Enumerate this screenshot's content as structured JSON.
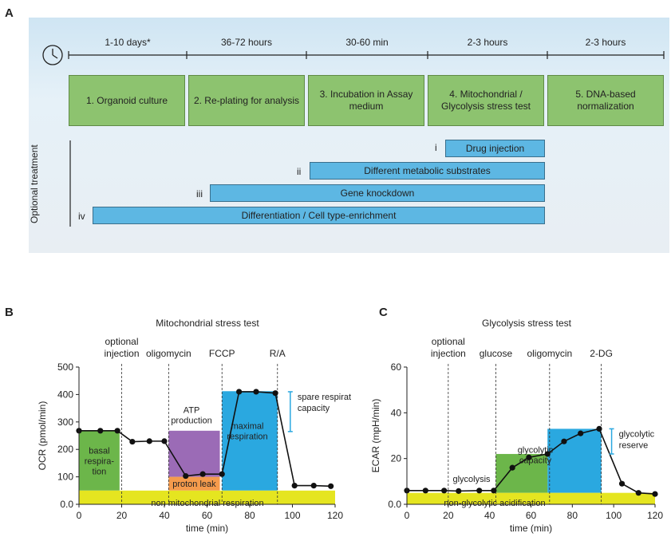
{
  "panel_letters": {
    "a": "A",
    "b": "B",
    "c": "C"
  },
  "timeline": {
    "icon": "clock-icon",
    "phases": [
      "1-10 days*",
      "36-72 hours",
      "30-60 min",
      "2-3 hours",
      "2-3 hours"
    ],
    "steps": [
      "1. Organoid culture",
      "2. Re-plating for analysis",
      "3. Incubation in Assay medium",
      "4. Mitochondrial / Glycolysis stress test",
      "5. DNA-based normalization"
    ]
  },
  "optional_treatment": {
    "label": "Optional treatment",
    "items": [
      {
        "roman": "i",
        "label": "Drug injection"
      },
      {
        "roman": "ii",
        "label": "Different metabolic substrates"
      },
      {
        "roman": "iii",
        "label": "Gene knockdown"
      },
      {
        "roman": "iv",
        "label": "Differentiation / Cell type-enrichment"
      }
    ]
  },
  "colors": {
    "step_green": "#8dc36f",
    "bar_blue": "#5db7e3",
    "basal_green": "#6cb64a",
    "atp_purple": "#9b6bb6",
    "proton_orange": "#f59b4c",
    "maximal_blue": "#2aa8e0",
    "yellow": "#e5e520",
    "reserve_blue": "#2aa8e0"
  },
  "chart_data": [
    {
      "type": "line",
      "title": "Mitochondrial stress test",
      "xlabel": "time (min)",
      "ylabel": "OCR (pmol/min)",
      "xlim": [
        0,
        120
      ],
      "ylim": [
        0,
        500
      ],
      "xticks": [
        "0",
        "20",
        "40",
        "60",
        "80",
        "100",
        "120"
      ],
      "yticks": [
        "0.0",
        "100",
        "200",
        "300",
        "400",
        "500"
      ],
      "injections": [
        {
          "x": 20,
          "label": "optional injection",
          "label_lines": [
            "optional",
            "injection"
          ]
        },
        {
          "x": 42,
          "label": "oligomycin",
          "label_lines": [
            "oligomycin"
          ]
        },
        {
          "x": 67,
          "label": "FCCP",
          "label_lines": [
            "FCCP"
          ]
        },
        {
          "x": 93,
          "label": "R/A",
          "label_lines": [
            "R/A"
          ]
        }
      ],
      "series": [
        {
          "x": [
            0,
            10,
            18,
            25,
            33,
            40,
            50,
            58,
            67,
            75,
            83,
            92,
            101,
            110,
            118
          ],
          "y": [
            268,
            268,
            268,
            228,
            230,
            230,
            103,
            110,
            110,
            410,
            410,
            405,
            68,
            68,
            66
          ]
        }
      ],
      "regions": [
        {
          "label": "basal respira-tion",
          "label_lines": [
            "basal",
            "respira-",
            "tion"
          ],
          "x": [
            0,
            19
          ],
          "y": [
            50,
            268
          ],
          "color": "#6cb64a"
        },
        {
          "label": "ATP production",
          "label_lines": [
            "ATP",
            "production"
          ],
          "x": [
            42,
            66
          ],
          "y": [
            100,
            268
          ],
          "color": "#9b6bb6"
        },
        {
          "label": "proton leak",
          "label_lines": [
            "proton leak"
          ],
          "x": [
            42,
            66
          ],
          "y": [
            50,
            100
          ],
          "color": "#f59b4c"
        },
        {
          "label": "maximal respiration",
          "label_lines": [
            "maximal",
            "respiration"
          ],
          "x": [
            67,
            93
          ],
          "y": [
            50,
            412
          ],
          "color": "#2aa8e0"
        },
        {
          "label": "non mitochondrial respiration",
          "label_lines": [
            "non mitochondrial respiration"
          ],
          "x": [
            0,
            120
          ],
          "y": [
            0,
            50
          ],
          "color": "#e5e520"
        }
      ],
      "reserve": {
        "label": "spare respiratory capacity",
        "label_lines": [
          "spare respiratory",
          "capacity"
        ],
        "x": 99,
        "y": [
          265,
          410
        ]
      }
    },
    {
      "type": "line",
      "title": "Glycolysis stress test",
      "xlabel": "time (min)",
      "ylabel": "ECAR (mpH/min)",
      "xlim": [
        0,
        120
      ],
      "ylim": [
        0,
        60
      ],
      "xticks": [
        "0",
        "20",
        "40",
        "60",
        "80",
        "100",
        "120"
      ],
      "yticks": [
        "0.0",
        "20",
        "40",
        "60"
      ],
      "injections": [
        {
          "x": 20,
          "label": "optional injection",
          "label_lines": [
            "optional",
            "injection"
          ]
        },
        {
          "x": 43,
          "label": "glucose",
          "label_lines": [
            "glucose"
          ]
        },
        {
          "x": 69,
          "label": "oligomycin",
          "label_lines": [
            "oligomycin"
          ]
        },
        {
          "x": 94,
          "label": "2-DG",
          "label_lines": [
            "2-DG"
          ]
        }
      ],
      "series": [
        {
          "x": [
            0,
            9,
            18,
            25,
            35,
            42,
            51,
            59,
            68,
            76,
            84,
            93,
            104,
            112,
            120
          ],
          "y": [
            6,
            6,
            6,
            5.8,
            6,
            6,
            16,
            20.5,
            22,
            27.5,
            31,
            33,
            9,
            5,
            4.5
          ]
        }
      ],
      "regions": [
        {
          "label": "glycolysis",
          "label_lines": [
            "glycolysis"
          ],
          "x": [
            43,
            68
          ],
          "y": [
            5,
            22
          ],
          "color": "#6cb64a"
        },
        {
          "label": "glycolytic capacity",
          "label_lines": [
            "glycolytic",
            "capacity"
          ],
          "x": [
            68,
            94
          ],
          "y": [
            5,
            33
          ],
          "color": "#2aa8e0"
        },
        {
          "label": "non-glycolytic acidification",
          "label_lines": [
            "non-glycolytic acidification"
          ],
          "x": [
            0,
            120
          ],
          "y": [
            0,
            5
          ],
          "color": "#e5e520"
        }
      ],
      "reserve": {
        "label": "glycolytic reserve",
        "label_lines": [
          "glycolytic",
          "reserve"
        ],
        "x": 99,
        "y": [
          22,
          33
        ]
      }
    }
  ]
}
